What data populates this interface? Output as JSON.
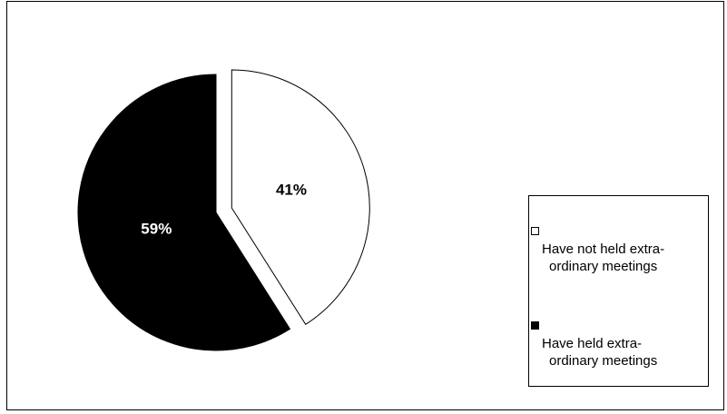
{
  "chart_data": {
    "type": "pie",
    "title": "",
    "legend": "right",
    "slices": [
      {
        "label": "Have not held extra-ordinary meetings",
        "value": 41,
        "display": "41%",
        "color": "#ffffff",
        "label_color": "#000000",
        "exploded": true
      },
      {
        "label": "Have held extra-ordinary meetings",
        "value": 59,
        "display": "59%",
        "color": "#000000",
        "label_color": "#ffffff",
        "exploded": false
      }
    ]
  },
  "legend": {
    "items": [
      {
        "line1": "Have not held extra-",
        "line2": "ordinary meetings",
        "color": "#ffffff"
      },
      {
        "line1": "Have held extra-",
        "line2": "ordinary meetings",
        "color": "#000000"
      }
    ]
  }
}
